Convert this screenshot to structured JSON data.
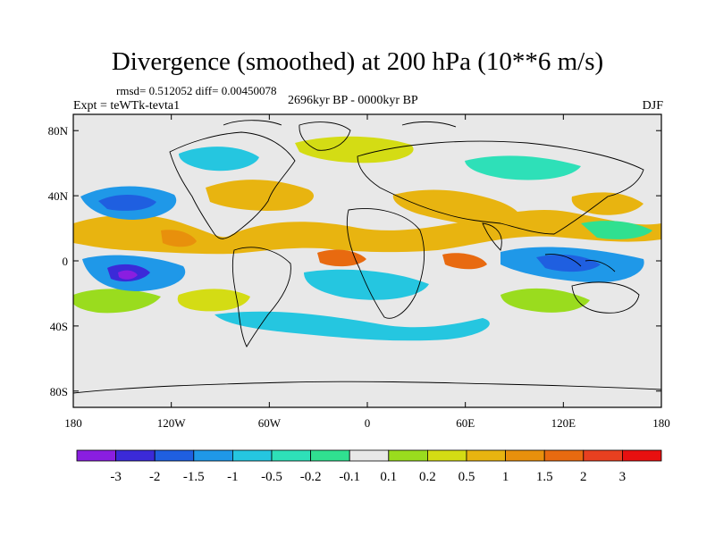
{
  "title": "Divergence (smoothed) at 200 hPa (10**6 m/s)",
  "stats": "rmsd= 0.512052 diff= 0.00450078",
  "experiment": "Expt = teWTk-tevta1",
  "period": "2696kyr BP - 0000kyr BP",
  "season": "DJF",
  "map": {
    "lon_range": [
      -180,
      180
    ],
    "lat_range": [
      -90,
      90
    ],
    "y_ticks": [
      {
        "lat": 80,
        "label": "80N"
      },
      {
        "lat": 40,
        "label": "40N"
      },
      {
        "lat": 0,
        "label": "0"
      },
      {
        "lat": -40,
        "label": "40S"
      },
      {
        "lat": -80,
        "label": "80S"
      }
    ],
    "x_ticks": [
      {
        "lon": -180,
        "label": "180"
      },
      {
        "lon": -120,
        "label": "120W"
      },
      {
        "lon": -60,
        "label": "60W"
      },
      {
        "lon": 0,
        "label": "0"
      },
      {
        "lon": 60,
        "label": "60E"
      },
      {
        "lon": 120,
        "label": "120E"
      },
      {
        "lon": 180,
        "label": "180"
      }
    ],
    "background_color": "#e8e8e8"
  },
  "colorbar": {
    "colors": [
      "#8a1ee0",
      "#3b2ad8",
      "#1f5fe0",
      "#1f98e8",
      "#25c6e0",
      "#2ee0b8",
      "#30e090",
      "#e8e8e8",
      "#9adc1e",
      "#d4dc14",
      "#e8b410",
      "#e8900c",
      "#e86a10",
      "#e84020",
      "#e81010"
    ],
    "labels": [
      "-3",
      "-2",
      "-1.5",
      "-1",
      "-0.5",
      "-0.2",
      "-0.1",
      "0.1",
      "0.2",
      "0.5",
      "1",
      "1.5",
      "2",
      "3"
    ]
  }
}
